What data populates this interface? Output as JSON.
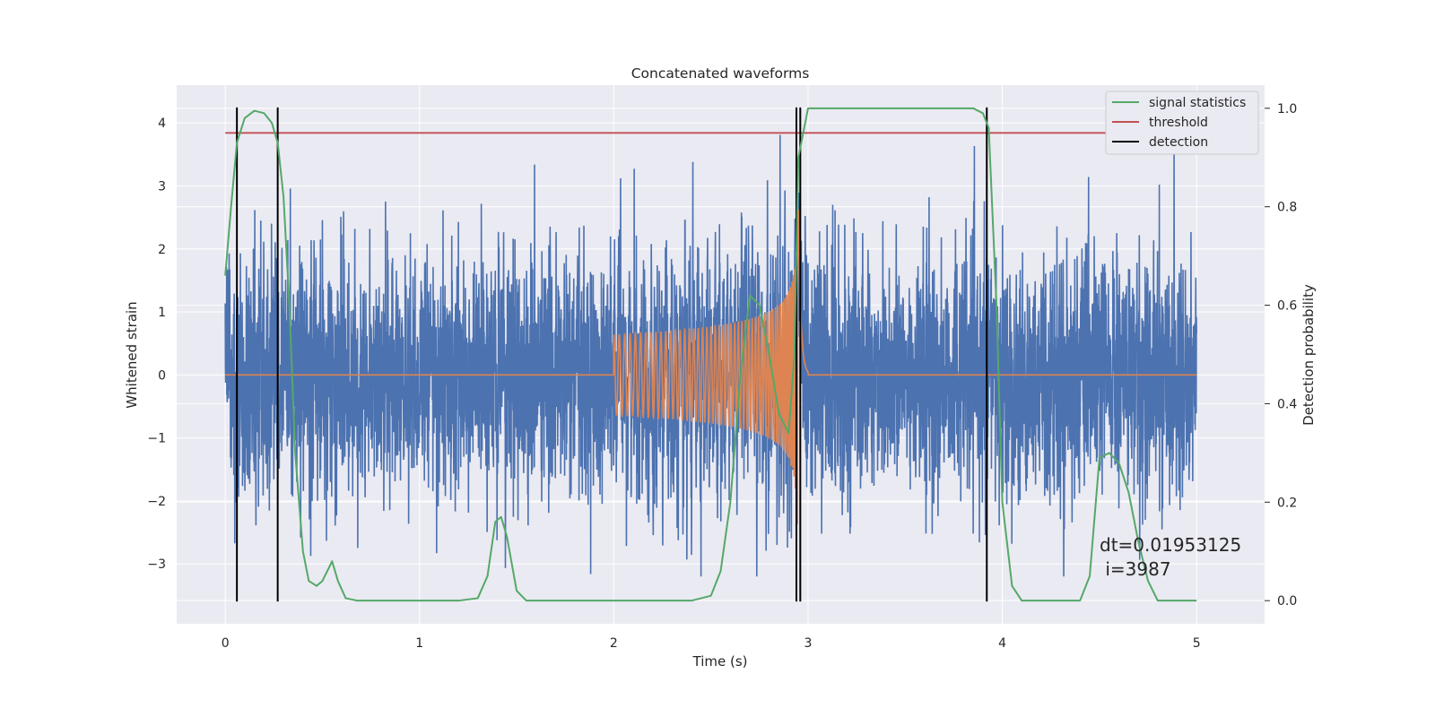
{
  "chart_data": {
    "type": "line",
    "title": "Concatenated waveforms",
    "xlabel": "Time (s)",
    "ylabel": "Whitened strain",
    "ylabel_right": "Detection probability",
    "xlim": [
      -0.25,
      5.35
    ],
    "ylim": [
      -3.95,
      4.6
    ],
    "ylim_right": [
      -0.047,
      1.047
    ],
    "xticks": [
      "0",
      "1",
      "2",
      "3",
      "4",
      "5"
    ],
    "yticks": [
      "−3",
      "−2",
      "−1",
      "0",
      "1",
      "2",
      "3",
      "4"
    ],
    "yticks_right": [
      "0.0",
      "0.2",
      "0.4",
      "0.6",
      "0.8",
      "1.0"
    ],
    "grid": true,
    "legend_position": "top-right",
    "colors": {
      "noise": "#4c72b0",
      "signal": "#dd8452",
      "statistic": "#55a868",
      "threshold": "#c44e52",
      "detection": "#000000",
      "background": "#eaeaf2",
      "grid": "#ffffff"
    },
    "legend": [
      {
        "label": "signal statistics",
        "color": "#55a868"
      },
      {
        "label": "threshold",
        "color": "#c44e52"
      },
      {
        "label": "detection",
        "color": "#000000"
      }
    ],
    "noise": {
      "x_start": 0,
      "x_end": 5,
      "amplitude_range": [
        -3.2,
        3.9
      ],
      "typical_envelope": 2.3
    },
    "injected_signal": {
      "t_start": 2.0,
      "t_merger": 2.95,
      "t_end": 3.0,
      "peak_amplitude": 2.7,
      "initial_amplitude": 0.28
    },
    "threshold": {
      "value": 0.95,
      "x_range": [
        0,
        5
      ]
    },
    "detections": [
      0.06,
      0.27,
      2.94,
      2.96,
      3.92
    ],
    "signal_statistics": {
      "x": [
        0,
        0.03,
        0.06,
        0.1,
        0.15,
        0.2,
        0.24,
        0.27,
        0.3,
        0.33,
        0.36,
        0.4,
        0.43,
        0.47,
        0.5,
        0.55,
        0.58,
        0.62,
        0.68,
        0.8,
        1.0,
        1.2,
        1.3,
        1.35,
        1.39,
        1.42,
        1.45,
        1.5,
        1.55,
        1.6,
        2.0,
        2.4,
        2.5,
        2.55,
        2.6,
        2.65,
        2.7,
        2.75,
        2.8,
        2.85,
        2.9,
        2.93,
        2.95,
        3.0,
        3.5,
        3.85,
        3.9,
        3.93,
        3.97,
        4.0,
        4.05,
        4.1,
        4.4,
        4.45,
        4.5,
        4.55,
        4.6,
        4.65,
        4.7,
        4.75,
        4.8,
        4.9,
        5.0
      ],
      "y": [
        0.66,
        0.8,
        0.93,
        0.98,
        0.995,
        0.99,
        0.97,
        0.93,
        0.82,
        0.6,
        0.3,
        0.1,
        0.04,
        0.03,
        0.04,
        0.08,
        0.04,
        0.005,
        0.0,
        0.0,
        0.0,
        0.0,
        0.005,
        0.05,
        0.16,
        0.17,
        0.13,
        0.02,
        0.0,
        0.0,
        0.0,
        0.0,
        0.01,
        0.06,
        0.2,
        0.45,
        0.62,
        0.6,
        0.5,
        0.38,
        0.34,
        0.5,
        0.9,
        1.0,
        1.0,
        1.0,
        0.99,
        0.96,
        0.6,
        0.2,
        0.03,
        0.0,
        0.0,
        0.05,
        0.29,
        0.3,
        0.28,
        0.22,
        0.12,
        0.04,
        0.0,
        0.0,
        0.0
      ]
    },
    "annotation": [
      "dt=0.01953125",
      " i=3987"
    ]
  }
}
